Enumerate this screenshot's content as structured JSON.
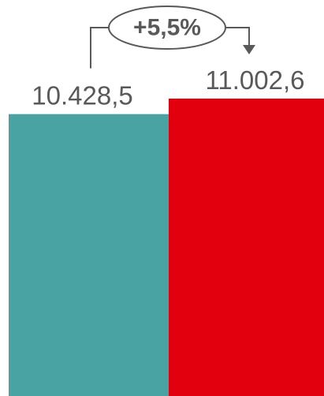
{
  "chart_data": {
    "type": "bar",
    "categories": [
      "",
      ""
    ],
    "values": [
      10428.5,
      11002.6
    ],
    "value_labels": [
      "10.428,5",
      "11.002,6"
    ],
    "colors": [
      "#4aa3a3",
      "#e2000f"
    ],
    "annotation": {
      "text": "+5,5%",
      "from": 0,
      "to": 1
    },
    "ylim": [
      0,
      11002.6
    ],
    "grid": false,
    "title": "",
    "xlabel": "",
    "ylabel": ""
  }
}
